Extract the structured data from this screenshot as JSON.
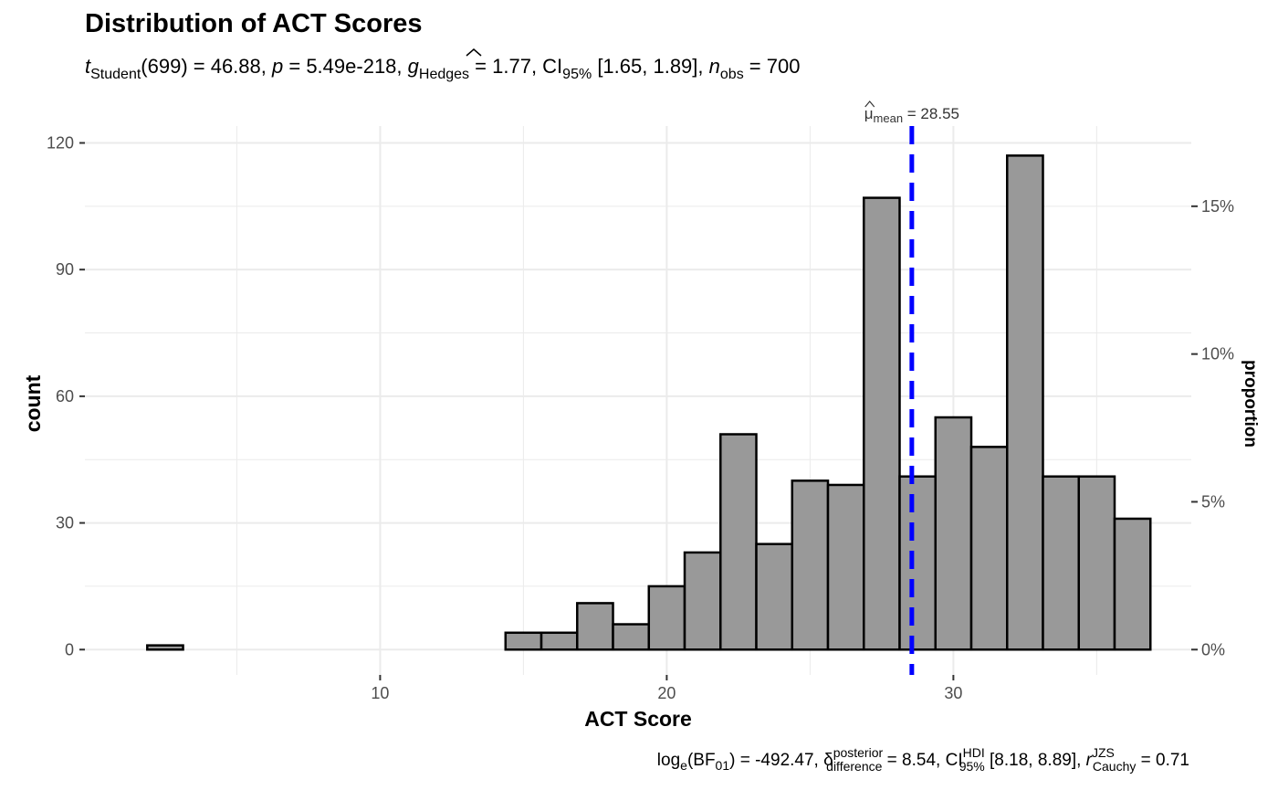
{
  "chart_data": {
    "type": "bar",
    "title": "Distribution of ACT Scores",
    "subtitle": {
      "t_sym": "t",
      "t_sub": "Student",
      "t_df": "(699)",
      "t_val": " = 46.88, ",
      "p_sym": "p",
      "p_val": " = 5.49e-218, ",
      "g_sym": "g",
      "g_sub": "Hedges",
      "g_val": " = 1.77, ",
      "ci_sym": "CI",
      "ci_sub": "95%",
      "ci_val": " [1.65, 1.89], ",
      "n_sym": "n",
      "n_sub": "obs",
      "n_val": " = 700"
    },
    "caption": {
      "log_part": "log",
      "log_sub": "e",
      "bf_open": "(BF",
      "bf_sub": "01",
      "bf_close": ")",
      "bf_val": " = -492.47, ",
      "delta_sym": "δ",
      "delta_sup": "posterior",
      "delta_sub": "difference",
      "delta_val": " = 8.54, ",
      "ci_sym": "CI",
      "ci_sup": "HDI",
      "ci_sub": "95%",
      "ci_val": " [8.18, 8.89], ",
      "r_sym": "r",
      "r_sup": "JZS",
      "r_sub": "Cauchy",
      "r_val": " = 0.71"
    },
    "xlabel": "ACT Score",
    "ylabel": "count",
    "y2label": "proportion",
    "xlim": [
      -0.3,
      38.3
    ],
    "ylim": [
      -6,
      124
    ],
    "x_ticks": [
      10,
      20,
      30
    ],
    "y_ticks": [
      0,
      30,
      60,
      90,
      120
    ],
    "y2_ticks": [
      {
        "value": 0,
        "label": "0%"
      },
      {
        "value": 35,
        "label": "5%"
      },
      {
        "value": 70,
        "label": "10%"
      },
      {
        "value": 105,
        "label": "15%"
      }
    ],
    "bin_width": 1.25,
    "bins": [
      {
        "x": 2.5,
        "count": 1
      },
      {
        "x": 3.75,
        "count": 0
      },
      {
        "x": 5.0,
        "count": 0
      },
      {
        "x": 6.25,
        "count": 0
      },
      {
        "x": 7.5,
        "count": 0
      },
      {
        "x": 8.75,
        "count": 0
      },
      {
        "x": 10.0,
        "count": 0
      },
      {
        "x": 11.25,
        "count": 0
      },
      {
        "x": 12.5,
        "count": 0
      },
      {
        "x": 13.75,
        "count": 0
      },
      {
        "x": 15.0,
        "count": 4
      },
      {
        "x": 16.25,
        "count": 4
      },
      {
        "x": 17.5,
        "count": 11
      },
      {
        "x": 18.75,
        "count": 6
      },
      {
        "x": 20.0,
        "count": 15
      },
      {
        "x": 21.25,
        "count": 23
      },
      {
        "x": 22.5,
        "count": 51
      },
      {
        "x": 23.75,
        "count": 25
      },
      {
        "x": 25.0,
        "count": 40
      },
      {
        "x": 26.25,
        "count": 39
      },
      {
        "x": 27.5,
        "count": 107
      },
      {
        "x": 28.75,
        "count": 41
      },
      {
        "x": 30.0,
        "count": 55
      },
      {
        "x": 31.25,
        "count": 48
      },
      {
        "x": 32.5,
        "count": 117
      },
      {
        "x": 33.75,
        "count": 41
      },
      {
        "x": 35.0,
        "count": 41
      },
      {
        "x": 36.25,
        "count": 31
      }
    ],
    "mean_line": {
      "value": 28.55,
      "label_sym": "μ",
      "label_sub": "mean",
      "label_val": " = 28.55",
      "color": "#0000ff"
    },
    "colors": {
      "bar_fill": "#999999",
      "bar_stroke": "#000000",
      "grid": "#ebebeb",
      "axis_text": "#4d4d4d"
    },
    "grid": true
  }
}
